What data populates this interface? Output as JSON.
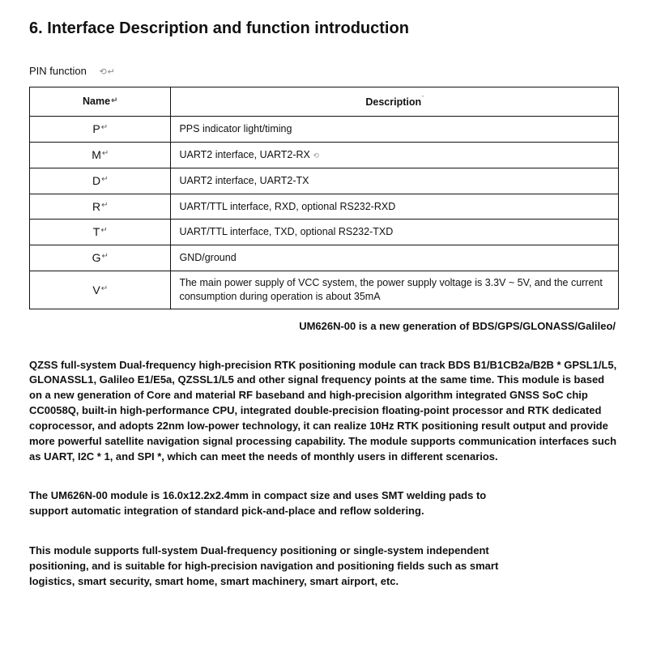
{
  "section": {
    "title": "6. Interface Description and function introduction"
  },
  "pin": {
    "label": "PIN function",
    "label_extra": "⟲↵",
    "headers": {
      "name": "Name",
      "description": "Description"
    },
    "rows": [
      {
        "name": "P",
        "desc": "PPS indicator light/timing"
      },
      {
        "name": "M",
        "desc": "UART2 interface, UART2-RX"
      },
      {
        "name": "D",
        "desc": "UART2 interface, UART2-TX"
      },
      {
        "name": "R",
        "desc": "UART/TTL interface, RXD, optional RS232-RXD"
      },
      {
        "name": "T",
        "desc": "UART/TTL interface, TXD, optional RS232-TXD"
      },
      {
        "name": "G",
        "desc": "GND/ground"
      },
      {
        "name": "V",
        "desc": "The main power supply of VCC system, the power supply voltage is 3.3V ~ 5V, and the current consumption during operation is about 35mA"
      }
    ]
  },
  "subline": "UM626N-00 is a new generation of BDS/GPS/GLONASS/Galileo/",
  "paragraphs": {
    "p1": "QZSS full-system Dual-frequency high-precision RTK positioning module can track BDS B1/B1CB2a/B2B * GPSL1/L5, GLONASSL1, Galileo E1/E5a, QZSSL1/L5 and other signal frequency points at the same time. This module is based on a new generation of Core and material RF baseband and high-precision algorithm integrated GNSS SoC chip CC0058Q, built-in high-performance CPU, integrated double-precision floating-point processor and RTK dedicated coprocessor, and adopts 22nm low-power technology, it can realize 10Hz RTK positioning result output and provide more powerful satellite navigation signal processing capability. The module supports communication interfaces such as UART, I2C * 1, and SPI *, which can meet the needs of monthly users in different scenarios.",
    "p2": "The UM626N-00 module is 16.0x12.2x2.4mm in compact size and uses SMT welding pads to support automatic integration of standard pick-and-place and reflow soldering.",
    "p3": "This module supports full-system Dual-frequency positioning or single-system independent positioning, and is suitable for high-precision navigation and positioning fields such as smart logistics, smart security, smart home, smart machinery, smart airport, etc."
  },
  "style": {
    "text_color": "#111111",
    "border_color": "#111111",
    "background_color": "#ffffff",
    "heading_fontsize": 20,
    "body_fontsize": 13,
    "table_fontsize": 12.5
  }
}
